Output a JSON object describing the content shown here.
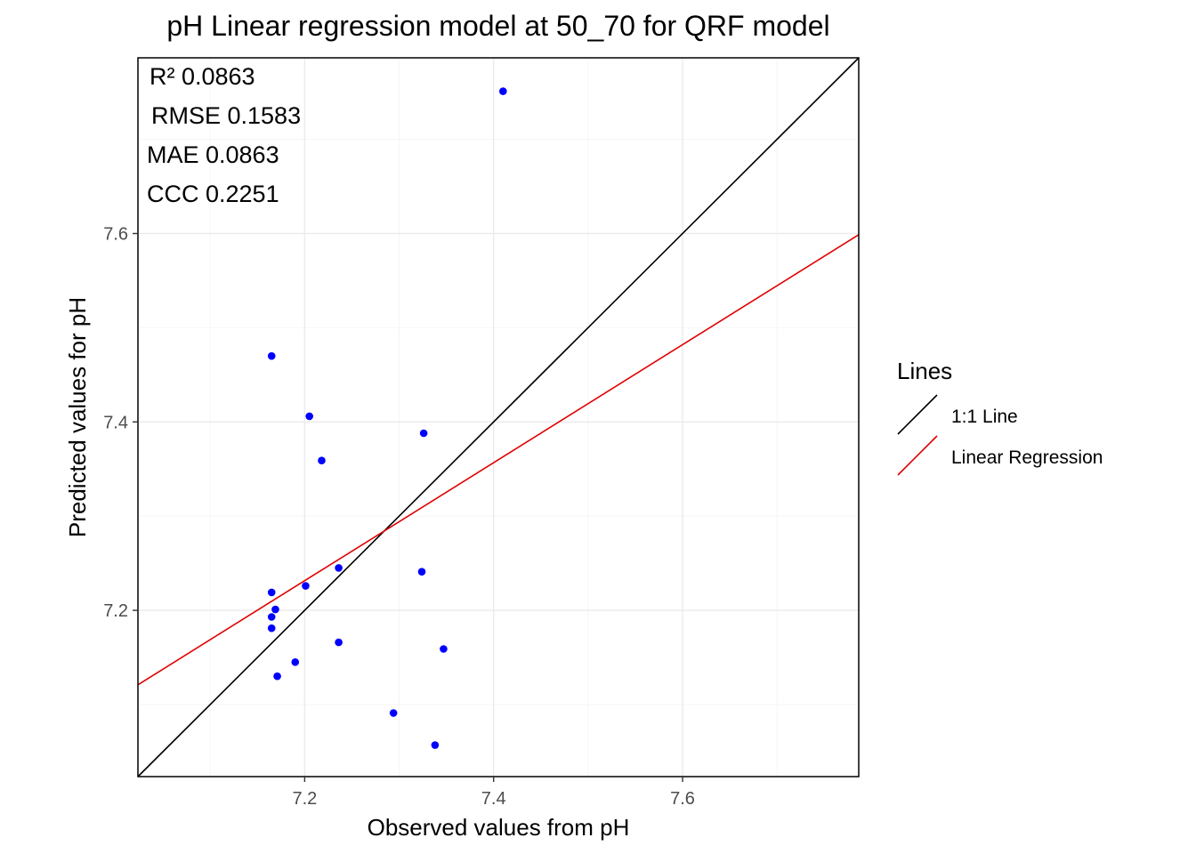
{
  "chart_data": {
    "type": "scatter",
    "title": "pH  Linear regression model at  50_70  for  QRF  model",
    "xlabel": "Observed values from pH",
    "ylabel": "Predicted values for pH",
    "xlim": [
      7.0235,
      7.7865
    ],
    "ylim": [
      7.0235,
      7.7865
    ],
    "x_major_ticks": [
      7.2,
      7.4,
      7.6
    ],
    "x_minor_ticks": [
      7.1,
      7.3,
      7.5,
      7.7
    ],
    "y_major_ticks": [
      7.2,
      7.4,
      7.6
    ],
    "y_minor_ticks": [
      7.1,
      7.3,
      7.5,
      7.7
    ],
    "tick_labels": {
      "x": [
        "7.2",
        "7.4",
        "7.6"
      ],
      "y": [
        "7.2",
        "7.4",
        "7.6"
      ]
    },
    "grid": true,
    "stats": [
      {
        "label": "R²",
        "value": "0.0863"
      },
      {
        "label": "RMSE",
        "value": "0.1583"
      },
      {
        "label": "MAE",
        "value": "0.0863"
      },
      {
        "label": "CCC",
        "value": "0.2251"
      }
    ],
    "points": {
      "color": "#0000ff",
      "x": [
        7.41,
        7.165,
        7.205,
        7.326,
        7.218,
        7.236,
        7.324,
        7.201,
        7.165,
        7.169,
        7.165,
        7.165,
        7.236,
        7.347,
        7.19,
        7.171,
        7.294,
        7.338
      ],
      "y": [
        7.751,
        7.47,
        7.406,
        7.388,
        7.359,
        7.245,
        7.241,
        7.226,
        7.219,
        7.201,
        7.193,
        7.181,
        7.166,
        7.159,
        7.145,
        7.13,
        7.091,
        7.057
      ]
    },
    "lines": [
      {
        "name": "1:1 Line",
        "color": "#000000",
        "slope": 1,
        "intercept": 0
      },
      {
        "name": "Linear Regression",
        "color": "#e00000",
        "slope": 0.6263,
        "intercept": 2.7221
      }
    ],
    "legend": {
      "title": "Lines",
      "position": "right",
      "items": [
        {
          "label": "1:1 Line",
          "color": "#000000"
        },
        {
          "label": "Linear Regression",
          "color": "#e00000"
        }
      ]
    }
  }
}
